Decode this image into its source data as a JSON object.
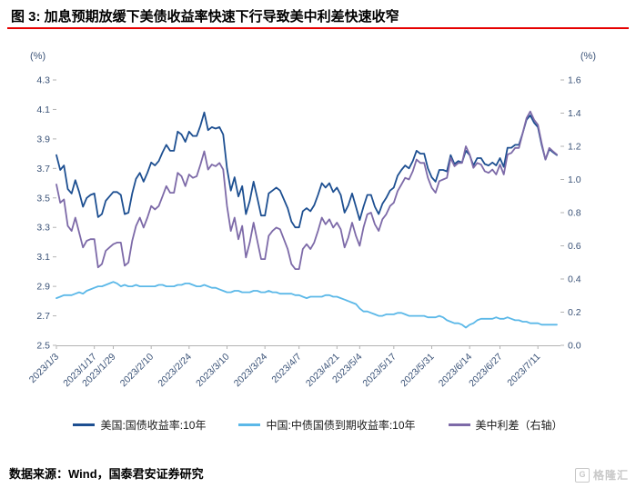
{
  "title": {
    "text": "图 3:  加息预期放缓下美债收益率快速下行导致美中利差快速收窄"
  },
  "footer": {
    "source": "数据来源：Wind，国泰君安证券研究"
  },
  "watermark": {
    "icon": "G",
    "text": "格隆汇"
  },
  "colors": {
    "title_rule": "#e60000",
    "axis_text": "#3a5277",
    "axis_line": "#b3b3b3",
    "us": "#1d4f91",
    "china": "#5bb8e8",
    "spread": "#7d6aa8",
    "watermark": "#c8c8c8"
  },
  "chart_data": {
    "type": "line",
    "title": "加息预期放缓下美债收益率快速下行导致美中利差快速收窄",
    "xlabel": "",
    "ylabel_left": "(%)",
    "ylabel_right": "(%)",
    "grid": false,
    "legend_position": "bottom",
    "left_axis": {
      "label": "(%)",
      "min": 2.5,
      "max": 4.3,
      "step": 0.2
    },
    "right_axis": {
      "label": "(%)",
      "min": 0.0,
      "max": 1.6,
      "step": 0.2
    },
    "x_tick_labels": [
      "2023/1/3",
      "2023/1/17",
      "2023/1/29",
      "2023/2/10",
      "2023/2/24",
      "2023/3/10",
      "2023/3/24",
      "2023/4/7",
      "2023/4/21",
      "2023/5/4",
      "2023/5/17",
      "2023/5/31",
      "2023/6/14",
      "2023/6/27",
      "2023/7/11"
    ],
    "x": [
      "2023/1/3",
      "2023/1/4",
      "2023/1/5",
      "2023/1/6",
      "2023/1/9",
      "2023/1/10",
      "2023/1/11",
      "2023/1/12",
      "2023/1/13",
      "2023/1/16",
      "2023/1/17",
      "2023/1/18",
      "2023/1/19",
      "2023/1/20",
      "2023/1/28",
      "2023/1/29",
      "2023/1/30",
      "2023/1/31",
      "2023/2/1",
      "2023/2/2",
      "2023/2/3",
      "2023/2/6",
      "2023/2/7",
      "2023/2/8",
      "2023/2/9",
      "2023/2/10",
      "2023/2/13",
      "2023/2/14",
      "2023/2/15",
      "2023/2/16",
      "2023/2/17",
      "2023/2/20",
      "2023/2/21",
      "2023/2/22",
      "2023/2/23",
      "2023/2/24",
      "2023/2/27",
      "2023/2/28",
      "2023/3/1",
      "2023/3/2",
      "2023/3/3",
      "2023/3/6",
      "2023/3/7",
      "2023/3/8",
      "2023/3/9",
      "2023/3/10",
      "2023/3/13",
      "2023/3/14",
      "2023/3/15",
      "2023/3/16",
      "2023/3/17",
      "2023/3/20",
      "2023/3/21",
      "2023/3/22",
      "2023/3/23",
      "2023/3/24",
      "2023/3/27",
      "2023/3/28",
      "2023/3/29",
      "2023/3/30",
      "2023/3/31",
      "2023/4/3",
      "2023/4/4",
      "2023/4/6",
      "2023/4/7",
      "2023/4/10",
      "2023/4/11",
      "2023/4/12",
      "2023/4/13",
      "2023/4/14",
      "2023/4/17",
      "2023/4/18",
      "2023/4/19",
      "2023/4/20",
      "2023/4/21",
      "2023/4/24",
      "2023/4/25",
      "2023/4/26",
      "2023/4/27",
      "2023/4/28",
      "2023/5/4",
      "2023/5/5",
      "2023/5/8",
      "2023/5/9",
      "2023/5/10",
      "2023/5/11",
      "2023/5/12",
      "2023/5/15",
      "2023/5/16",
      "2023/5/17",
      "2023/5/18",
      "2023/5/19",
      "2023/5/22",
      "2023/5/23",
      "2023/5/24",
      "2023/5/25",
      "2023/5/26",
      "2023/5/29",
      "2023/5/30",
      "2023/5/31",
      "2023/6/1",
      "2023/6/2",
      "2023/6/5",
      "2023/6/6",
      "2023/6/7",
      "2023/6/8",
      "2023/6/9",
      "2023/6/12",
      "2023/6/13",
      "2023/6/14",
      "2023/6/15",
      "2023/6/16",
      "2023/6/19",
      "2023/6/20",
      "2023/6/21",
      "2023/6/25",
      "2023/6/26",
      "2023/6/27",
      "2023/6/28",
      "2023/6/29",
      "2023/6/30",
      "2023/7/3",
      "2023/7/4",
      "2023/7/5",
      "2023/7/6",
      "2023/7/7",
      "2023/7/10",
      "2023/7/11",
      "2023/7/12",
      "2023/7/13",
      "2023/7/14",
      "2023/7/17",
      "2023/7/18"
    ],
    "series": [
      {
        "id": "us-10y",
        "name": "美国:国债收益率:10年",
        "axis": "left",
        "color": "#1d4f91",
        "values": [
          3.79,
          3.69,
          3.72,
          3.56,
          3.53,
          3.62,
          3.54,
          3.44,
          3.5,
          3.52,
          3.53,
          3.37,
          3.39,
          3.48,
          3.51,
          3.54,
          3.54,
          3.52,
          3.39,
          3.4,
          3.53,
          3.63,
          3.67,
          3.61,
          3.67,
          3.74,
          3.72,
          3.75,
          3.81,
          3.86,
          3.82,
          3.82,
          3.95,
          3.93,
          3.88,
          3.95,
          3.92,
          3.92,
          3.99,
          4.08,
          3.96,
          3.98,
          3.97,
          3.98,
          3.93,
          3.7,
          3.55,
          3.64,
          3.51,
          3.58,
          3.39,
          3.48,
          3.61,
          3.5,
          3.38,
          3.38,
          3.53,
          3.55,
          3.57,
          3.55,
          3.49,
          3.43,
          3.34,
          3.3,
          3.3,
          3.41,
          3.43,
          3.41,
          3.45,
          3.52,
          3.6,
          3.57,
          3.6,
          3.54,
          3.57,
          3.52,
          3.4,
          3.45,
          3.53,
          3.44,
          3.35,
          3.44,
          3.52,
          3.52,
          3.44,
          3.39,
          3.46,
          3.5,
          3.55,
          3.57,
          3.65,
          3.69,
          3.72,
          3.7,
          3.75,
          3.82,
          3.8,
          3.8,
          3.7,
          3.64,
          3.61,
          3.69,
          3.69,
          3.68,
          3.79,
          3.73,
          3.75,
          3.74,
          3.82,
          3.79,
          3.72,
          3.77,
          3.77,
          3.73,
          3.72,
          3.74,
          3.72,
          3.77,
          3.71,
          3.84,
          3.84,
          3.86,
          3.86,
          3.94,
          4.03,
          4.06,
          4.01,
          3.98,
          3.86,
          3.76,
          3.83,
          3.81,
          3.79
        ]
      },
      {
        "id": "china-10y",
        "name": "中国:中债国债到期收益率:10年",
        "axis": "left",
        "color": "#5bb8e8",
        "values": [
          2.82,
          2.83,
          2.84,
          2.84,
          2.84,
          2.85,
          2.86,
          2.85,
          2.87,
          2.88,
          2.89,
          2.9,
          2.9,
          2.91,
          2.92,
          2.93,
          2.92,
          2.9,
          2.91,
          2.9,
          2.9,
          2.91,
          2.9,
          2.9,
          2.9,
          2.9,
          2.9,
          2.91,
          2.91,
          2.9,
          2.9,
          2.9,
          2.91,
          2.91,
          2.92,
          2.92,
          2.91,
          2.9,
          2.9,
          2.91,
          2.9,
          2.89,
          2.89,
          2.88,
          2.87,
          2.86,
          2.86,
          2.87,
          2.87,
          2.86,
          2.86,
          2.86,
          2.87,
          2.87,
          2.86,
          2.86,
          2.87,
          2.86,
          2.86,
          2.85,
          2.85,
          2.85,
          2.85,
          2.84,
          2.84,
          2.83,
          2.82,
          2.83,
          2.83,
          2.83,
          2.83,
          2.84,
          2.84,
          2.83,
          2.83,
          2.82,
          2.81,
          2.8,
          2.79,
          2.78,
          2.75,
          2.73,
          2.73,
          2.72,
          2.71,
          2.7,
          2.7,
          2.71,
          2.71,
          2.71,
          2.72,
          2.72,
          2.71,
          2.7,
          2.7,
          2.7,
          2.7,
          2.7,
          2.69,
          2.69,
          2.69,
          2.7,
          2.69,
          2.67,
          2.66,
          2.65,
          2.65,
          2.64,
          2.62,
          2.64,
          2.65,
          2.67,
          2.68,
          2.68,
          2.68,
          2.68,
          2.69,
          2.68,
          2.68,
          2.69,
          2.68,
          2.67,
          2.67,
          2.66,
          2.66,
          2.65,
          2.65,
          2.65,
          2.64,
          2.64,
          2.64,
          2.64,
          2.64
        ]
      },
      {
        "id": "us-china-spread",
        "name": "美中利差（右轴）",
        "axis": "right",
        "color": "#7d6aa8",
        "values": [
          0.97,
          0.86,
          0.88,
          0.72,
          0.69,
          0.77,
          0.68,
          0.59,
          0.63,
          0.64,
          0.64,
          0.47,
          0.49,
          0.57,
          0.59,
          0.61,
          0.62,
          0.62,
          0.48,
          0.5,
          0.63,
          0.72,
          0.77,
          0.71,
          0.77,
          0.84,
          0.82,
          0.84,
          0.9,
          0.96,
          0.92,
          0.92,
          1.04,
          1.02,
          0.96,
          1.03,
          1.01,
          1.02,
          1.09,
          1.17,
          1.06,
          1.09,
          1.08,
          1.1,
          1.06,
          0.84,
          0.69,
          0.77,
          0.64,
          0.72,
          0.53,
          0.62,
          0.74,
          0.63,
          0.52,
          0.52,
          0.66,
          0.69,
          0.71,
          0.7,
          0.64,
          0.58,
          0.49,
          0.46,
          0.46,
          0.58,
          0.61,
          0.58,
          0.62,
          0.69,
          0.77,
          0.73,
          0.76,
          0.71,
          0.74,
          0.7,
          0.59,
          0.65,
          0.74,
          0.66,
          0.6,
          0.71,
          0.79,
          0.8,
          0.73,
          0.69,
          0.76,
          0.79,
          0.84,
          0.86,
          0.93,
          0.97,
          1.01,
          1.0,
          1.05,
          1.12,
          1.1,
          1.1,
          1.01,
          0.95,
          0.92,
          0.99,
          1.0,
          1.01,
          1.13,
          1.08,
          1.1,
          1.1,
          1.2,
          1.15,
          1.07,
          1.1,
          1.09,
          1.05,
          1.04,
          1.06,
          1.03,
          1.09,
          1.03,
          1.15,
          1.16,
          1.19,
          1.19,
          1.28,
          1.37,
          1.41,
          1.36,
          1.33,
          1.22,
          1.12,
          1.19,
          1.17,
          1.15
        ]
      }
    ]
  }
}
